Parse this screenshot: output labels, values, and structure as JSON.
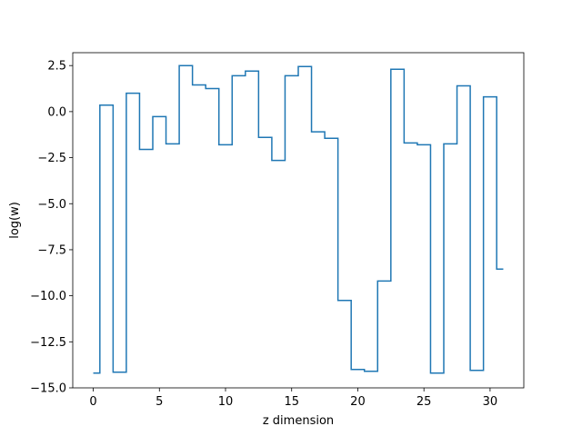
{
  "chart_data": {
    "type": "line",
    "drawstyle": "steps-mid",
    "title": "",
    "xlabel": "z dimension",
    "ylabel": "log(w)",
    "xlim": [
      -1.55,
      32.55
    ],
    "ylim": [
      -15.0,
      3.2
    ],
    "xticks": [
      0,
      5,
      10,
      15,
      20,
      25,
      30
    ],
    "xtick_labels": [
      "0",
      "5",
      "10",
      "15",
      "20",
      "25",
      "30"
    ],
    "yticks": [
      2.5,
      0.0,
      -2.5,
      -5.0,
      -7.5,
      -10.0,
      -12.5,
      -15.0
    ],
    "ytick_labels": [
      "2.5",
      "0.0",
      "−2.5",
      "−5.0",
      "−7.5",
      "−10.0",
      "−12.5",
      "−15.0"
    ],
    "grid": false,
    "series": [
      {
        "color": "#1f77b4",
        "x": [
          0,
          1,
          2,
          3,
          4,
          5,
          6,
          7,
          8,
          9,
          10,
          11,
          12,
          13,
          14,
          15,
          16,
          17,
          18,
          19,
          20,
          21,
          22,
          23,
          24,
          25,
          26,
          27,
          28,
          29,
          30,
          31
        ],
        "y": [
          -14.2,
          0.35,
          -14.15,
          1.0,
          -2.05,
          -0.27,
          -1.75,
          2.5,
          1.45,
          1.25,
          -1.8,
          1.95,
          2.2,
          -1.4,
          -2.65,
          1.95,
          2.45,
          -1.1,
          -1.45,
          -10.25,
          -14.0,
          -14.1,
          -9.2,
          2.3,
          -1.7,
          -1.8,
          -14.2,
          -1.75,
          1.4,
          -14.05,
          0.8,
          -8.55
        ]
      }
    ]
  }
}
